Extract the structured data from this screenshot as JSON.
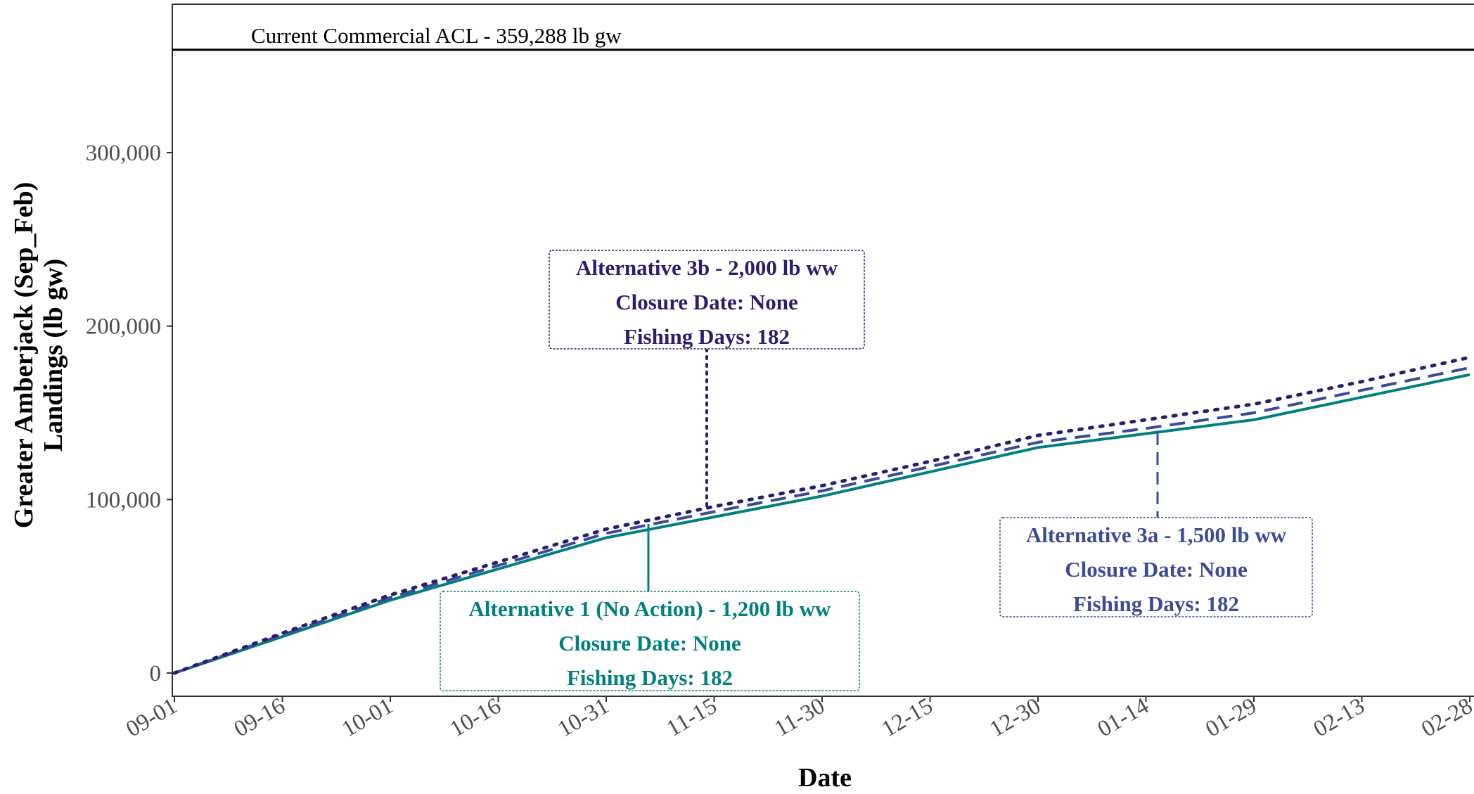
{
  "chart_data": {
    "type": "line",
    "title": "",
    "xlabel": "Date",
    "ylabel": "Greater Amberjack (Sep_Feb) Landings (lb gw)",
    "ylabel_lines": [
      "Greater Amberjack (Sep_Feb)",
      "Landings (lb gw)"
    ],
    "x_ticks": [
      "09-01",
      "09-16",
      "10-01",
      "10-16",
      "10-31",
      "11-15",
      "11-30",
      "12-15",
      "12-30",
      "01-14",
      "01-29",
      "02-13",
      "02-28"
    ],
    "y_ticks": [
      0,
      100000,
      200000,
      300000
    ],
    "y_tick_labels": [
      "0",
      "100,000",
      "200,000",
      "300,000"
    ],
    "xlim_days": [
      0,
      180
    ],
    "ylim": [
      -15000,
      385000
    ],
    "grid": false,
    "legend": "none",
    "reference_line": {
      "value": 359288,
      "label": "Current Commercial ACL - 359,288 lb gw",
      "color": "#000000"
    },
    "series": [
      {
        "key": "alt1",
        "color": "#00807f",
        "dash": "solid",
        "points": [
          {
            "date": "09-01",
            "y": 0
          },
          {
            "date": "09-16",
            "y": 21000
          },
          {
            "date": "10-01",
            "y": 42000
          },
          {
            "date": "10-16",
            "y": 60000
          },
          {
            "date": "10-31",
            "y": 78000
          },
          {
            "date": "11-15",
            "y": 90000
          },
          {
            "date": "11-30",
            "y": 102000
          },
          {
            "date": "12-15",
            "y": 116000
          },
          {
            "date": "12-30",
            "y": 130000
          },
          {
            "date": "01-14",
            "y": 138000
          },
          {
            "date": "01-29",
            "y": 146000
          },
          {
            "date": "02-13",
            "y": 159000
          },
          {
            "date": "02-28",
            "y": 172000
          }
        ]
      },
      {
        "key": "alt3a",
        "color": "#3c4b96",
        "dash": "dashed",
        "points": [
          {
            "date": "09-01",
            "y": 0
          },
          {
            "date": "09-16",
            "y": 22000
          },
          {
            "date": "10-01",
            "y": 43500
          },
          {
            "date": "10-16",
            "y": 62000
          },
          {
            "date": "10-31",
            "y": 80500
          },
          {
            "date": "11-15",
            "y": 93000
          },
          {
            "date": "11-30",
            "y": 105000
          },
          {
            "date": "12-15",
            "y": 119000
          },
          {
            "date": "12-30",
            "y": 133000
          },
          {
            "date": "01-14",
            "y": 141000
          },
          {
            "date": "01-29",
            "y": 150000
          },
          {
            "date": "02-13",
            "y": 163000
          },
          {
            "date": "02-28",
            "y": 176000
          }
        ]
      },
      {
        "key": "alt3b",
        "color": "#2a1f6e",
        "dash": "dotted",
        "points": [
          {
            "date": "09-01",
            "y": 0
          },
          {
            "date": "09-16",
            "y": 23000
          },
          {
            "date": "10-01",
            "y": 45000
          },
          {
            "date": "10-16",
            "y": 64000
          },
          {
            "date": "10-31",
            "y": 83000
          },
          {
            "date": "11-15",
            "y": 96000
          },
          {
            "date": "11-30",
            "y": 108000
          },
          {
            "date": "12-15",
            "y": 122000
          },
          {
            "date": "12-30",
            "y": 137000
          },
          {
            "date": "01-14",
            "y": 146000
          },
          {
            "date": "01-29",
            "y": 155000
          },
          {
            "date": "02-13",
            "y": 168000
          },
          {
            "date": "02-28",
            "y": 182000
          }
        ]
      }
    ],
    "annotations": [
      {
        "key": "alt3b",
        "color": "#2a1f6e",
        "dash": "dotted",
        "lines": [
          "Alternative 3b  - 2,000 lb ww",
          "Closure Date: None",
          "Fishing Days: 182"
        ]
      },
      {
        "key": "alt1",
        "color": "#00807f",
        "dash": "solid",
        "lines": [
          "Alternative 1 (No Action) - 1,200 lb ww",
          "Closure Date: None",
          "Fishing Days: 182"
        ]
      },
      {
        "key": "alt3a",
        "color": "#3c4b96",
        "dash": "dashed",
        "lines": [
          "Alternative 3a  - 1,500 lb ww",
          "Closure Date: None",
          "Fishing Days: 182"
        ]
      }
    ]
  }
}
